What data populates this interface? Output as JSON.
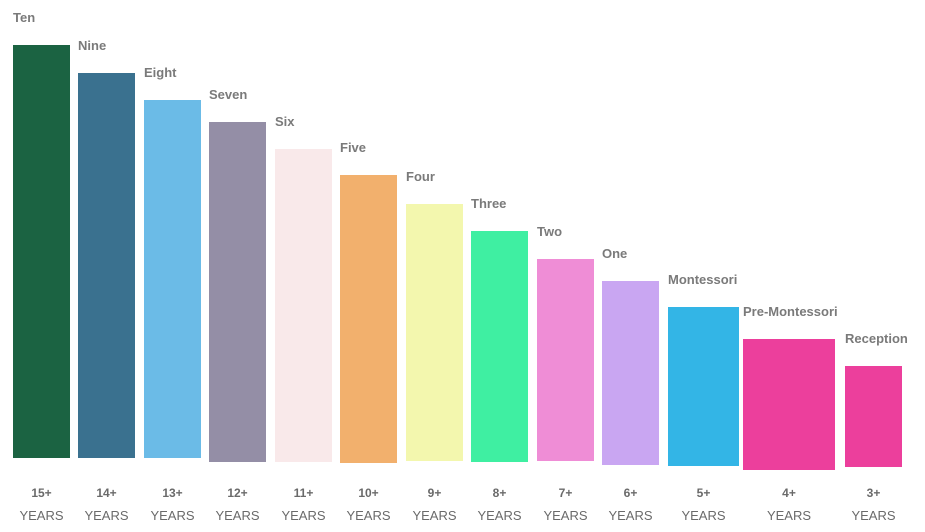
{
  "chart_data": {
    "type": "bar",
    "categories": [
      "Ten",
      "Nine",
      "Eight",
      "Seven",
      "Six",
      "Five",
      "Four",
      "Three",
      "Two",
      "One",
      "Montessori",
      "Pre-Montessori",
      "Reception"
    ],
    "ages": [
      "15+",
      "14+",
      "13+",
      "12+",
      "11+",
      "10+",
      "9+",
      "8+",
      "7+",
      "6+",
      "5+",
      "4+",
      "3+"
    ],
    "age_unit": "YEARS",
    "values": [
      413,
      385,
      358,
      340,
      313,
      288,
      257,
      231,
      202,
      184,
      159,
      131,
      101
    ],
    "colors": [
      "#1b6342",
      "#3a718f",
      "#6bbbe7",
      "#948ea6",
      "#f9e9ea",
      "#f2b06d",
      "#f3f7ae",
      "#3fefa2",
      "#ef8dd6",
      "#c9a6f2",
      "#33b5e6",
      "#ec3f9c",
      "#ec3f9c"
    ],
    "label_color": "#7a7a7a",
    "grid": false,
    "legend": "none"
  }
}
